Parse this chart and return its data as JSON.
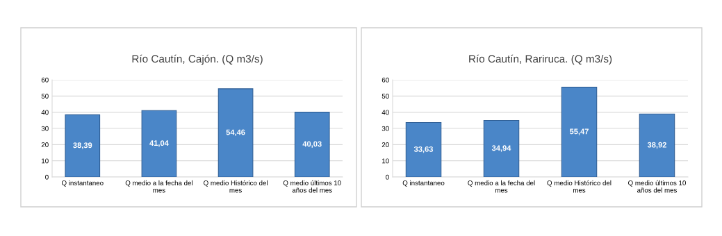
{
  "chart_data": [
    {
      "type": "bar",
      "title": "Río Cautín, Cajón. (Q m3/s)",
      "categories": [
        "Q instantaneo",
        "Q medio a la fecha del\nmes",
        "Q medio Histórico del\nmes",
        "Q medio últimos 10\naños del mes"
      ],
      "values": [
        38.39,
        41.04,
        54.46,
        40.03
      ],
      "value_labels": [
        "38,39",
        "41,04",
        "54,46",
        "40,03"
      ],
      "color": "#4a86c8",
      "ylim": [
        0,
        60
      ],
      "yticks": [
        0,
        10,
        20,
        30,
        40,
        50,
        60
      ],
      "grid": "y"
    },
    {
      "type": "bar",
      "title": "Río Cautín, Rariruca. (Q m3/s)",
      "categories": [
        "Q instantaneo",
        "Q medio a la fecha del\nmes",
        "Q medio Histórico del\nmes",
        "Q medio últimos 10\naños del mes"
      ],
      "values": [
        33.63,
        34.94,
        55.47,
        38.92
      ],
      "value_labels": [
        "33,63",
        "34,94",
        "55,47",
        "38,92"
      ],
      "color": "#4a86c8",
      "ylim": [
        0,
        60
      ],
      "yticks": [
        0,
        10,
        20,
        30,
        40,
        50,
        60
      ],
      "grid": "y"
    }
  ]
}
